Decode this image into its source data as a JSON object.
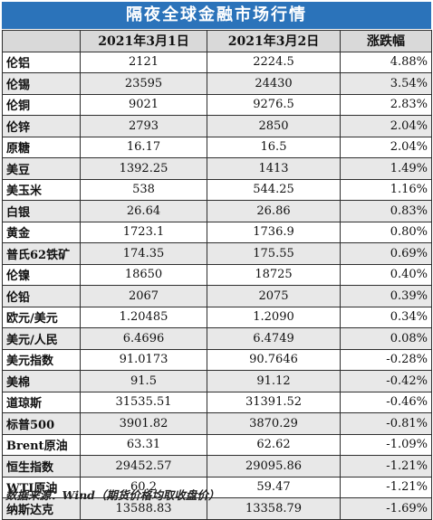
{
  "title": "隔夜全球金融市场行情",
  "columns": {
    "name": "",
    "date1": "2021年3月1日",
    "date2": "2021年3月2日",
    "change": "涨跌幅"
  },
  "rows": [
    {
      "name": "伦铝",
      "d1": "2121",
      "d2": "2224.5",
      "chg": "4.88%"
    },
    {
      "name": "伦锡",
      "d1": "23595",
      "d2": "24430",
      "chg": "3.54%"
    },
    {
      "name": "伦铜",
      "d1": "9021",
      "d2": "9276.5",
      "chg": "2.83%"
    },
    {
      "name": "伦锌",
      "d1": "2793",
      "d2": "2850",
      "chg": "2.04%"
    },
    {
      "name": "原糖",
      "d1": "16.17",
      "d2": "16.5",
      "chg": "2.04%"
    },
    {
      "name": "美豆",
      "d1": "1392.25",
      "d2": "1413",
      "chg": "1.49%"
    },
    {
      "name": "美玉米",
      "d1": "538",
      "d2": "544.25",
      "chg": "1.16%"
    },
    {
      "name": "白银",
      "d1": "26.64",
      "d2": "26.86",
      "chg": "0.83%"
    },
    {
      "name": "黄金",
      "d1": "1723.1",
      "d2": "1736.9",
      "chg": "0.80%"
    },
    {
      "name": "普氏62铁矿",
      "d1": "174.35",
      "d2": "175.55",
      "chg": "0.69%"
    },
    {
      "name": "伦镍",
      "d1": "18650",
      "d2": "18725",
      "chg": "0.40%"
    },
    {
      "name": "伦铅",
      "d1": "2067",
      "d2": "2075",
      "chg": "0.39%"
    },
    {
      "name": "欧元/美元",
      "d1": "1.20485",
      "d2": "1.2090",
      "chg": "0.34%"
    },
    {
      "name": "美元/人民",
      "d1": "6.4696",
      "d2": "6.4749",
      "chg": "0.08%"
    },
    {
      "name": "美元指数",
      "d1": "91.0173",
      "d2": "90.7646",
      "chg": "-0.28%"
    },
    {
      "name": "美棉",
      "d1": "91.5",
      "d2": "91.12",
      "chg": "-0.42%"
    },
    {
      "name": "道琼斯",
      "d1": "31535.51",
      "d2": "31391.52",
      "chg": "-0.46%"
    },
    {
      "name": "标普500",
      "d1": "3901.82",
      "d2": "3870.29",
      "chg": "-0.81%"
    },
    {
      "name": "Brent原油",
      "d1": "63.31",
      "d2": "62.62",
      "chg": "-1.09%"
    },
    {
      "name": "恒生指数",
      "d1": "29452.57",
      "d2": "29095.86",
      "chg": "-1.21%"
    },
    {
      "name": "WTI原油",
      "d1": "60.2",
      "d2": "59.47",
      "chg": "-1.21%"
    },
    {
      "name": "纳斯达克",
      "d1": "13588.83",
      "d2": "13358.79",
      "chg": "-1.69%"
    }
  ],
  "footnote": "数据来源：Wind（期货价格均取收盘价）",
  "colors": {
    "title_bg": "#2b73ba",
    "header_bg": "#d9d9d9",
    "alt_row_bg": "#e8e8e8",
    "border": "#2e2e2e"
  }
}
